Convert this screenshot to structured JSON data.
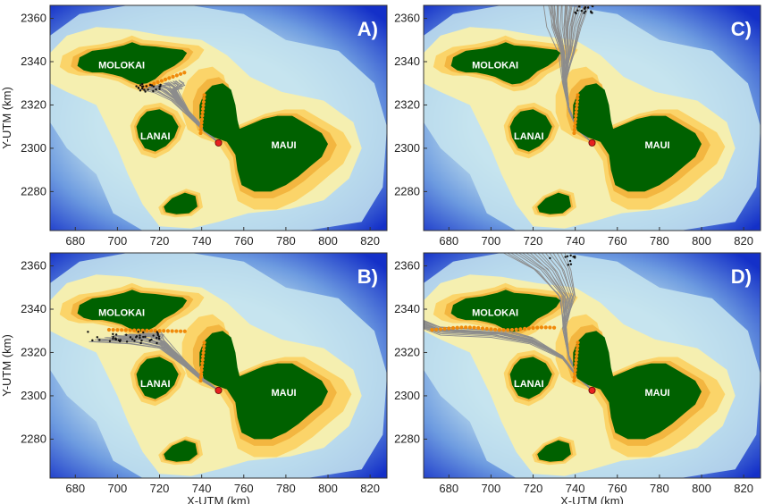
{
  "chart_data": {
    "type": "map",
    "xlabel": "X-UTM (km)",
    "ylabel": "Y-UTM (km)",
    "xlim": [
      668,
      828
    ],
    "ylim": [
      2262,
      2366
    ],
    "xticks": [
      680,
      700,
      720,
      740,
      760,
      780,
      800,
      820
    ],
    "yticks": [
      2280,
      2300,
      2320,
      2340,
      2360
    ],
    "colors": {
      "deep": "#1430c8",
      "mid": "#6d9be0",
      "shallow": "#c6e4ee",
      "shelf": "#f5efb0",
      "nearshore": "#fbd469",
      "coast": "#f3b640",
      "land": "#006100",
      "tracks": "#8c8c8c",
      "orange": "#f08a0a",
      "release": "#e82020"
    },
    "release_point": {
      "x": 748,
      "y": 2302.5
    },
    "islands": [
      {
        "name": "MOLOKAI",
        "label_x": 702,
        "label_y": 2337
      },
      {
        "name": "LANAI",
        "label_x": 718,
        "label_y": 2304
      },
      {
        "name": "MAUI",
        "label_x": 779,
        "label_y": 2300
      },
      {
        "name": "",
        "label_x": 0,
        "label_y": 0
      }
    ],
    "panels": [
      {
        "label": "A)",
        "scenario": "A"
      },
      {
        "label": "C)",
        "scenario": "C"
      },
      {
        "label": "B)",
        "scenario": "B"
      },
      {
        "label": "D)",
        "scenario": "D"
      }
    ]
  }
}
